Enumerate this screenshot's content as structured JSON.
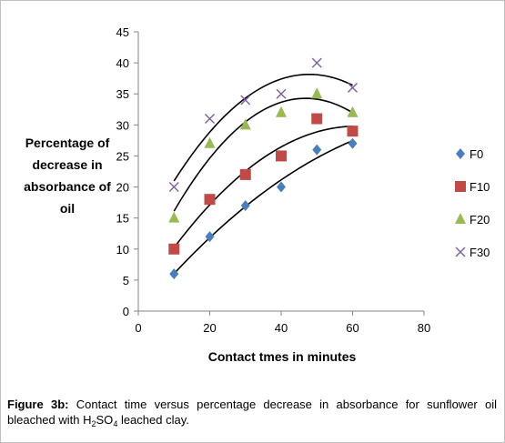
{
  "chart_data": {
    "type": "scatter",
    "xlabel": "Contact tmes  in minutes",
    "ylabel_lines": [
      "Percentage of",
      "decrease in",
      "absorbance of",
      "oil"
    ],
    "xlim": [
      0,
      80
    ],
    "ylim": [
      0,
      45
    ],
    "xticks": [
      0,
      20,
      40,
      60,
      80
    ],
    "yticks": [
      0,
      5,
      10,
      15,
      20,
      25,
      30,
      35,
      40,
      45
    ],
    "grid": false,
    "legend_position": "right",
    "trendlines": "polynomial",
    "series": [
      {
        "name": "F0",
        "marker": "diamond",
        "color": "#4a7ebb",
        "x": [
          10,
          20,
          30,
          40,
          50,
          60
        ],
        "y": [
          6,
          12,
          17,
          20,
          26,
          27
        ]
      },
      {
        "name": "F10",
        "marker": "square",
        "color": "#be4b48",
        "x": [
          10,
          20,
          30,
          40,
          50,
          60
        ],
        "y": [
          10,
          18,
          22,
          25,
          31,
          29
        ]
      },
      {
        "name": "F20",
        "marker": "triangle",
        "color": "#98b954",
        "x": [
          10,
          20,
          30,
          40,
          50,
          60
        ],
        "y": [
          15,
          27,
          30,
          32,
          35,
          32
        ]
      },
      {
        "name": "F30",
        "marker": "x",
        "color": "#7d60a0",
        "x": [
          10,
          20,
          30,
          40,
          50,
          60
        ],
        "y": [
          20,
          31,
          34,
          35,
          40,
          36
        ]
      }
    ]
  },
  "caption": {
    "label": "Figure 3b:",
    "text_before_sub": " Contact time versus percentage decrease in absorbance for sunflower oil bleached with H",
    "sub1": "2",
    "mid": "SO",
    "sub2": "4",
    "text_after": " leached clay."
  }
}
